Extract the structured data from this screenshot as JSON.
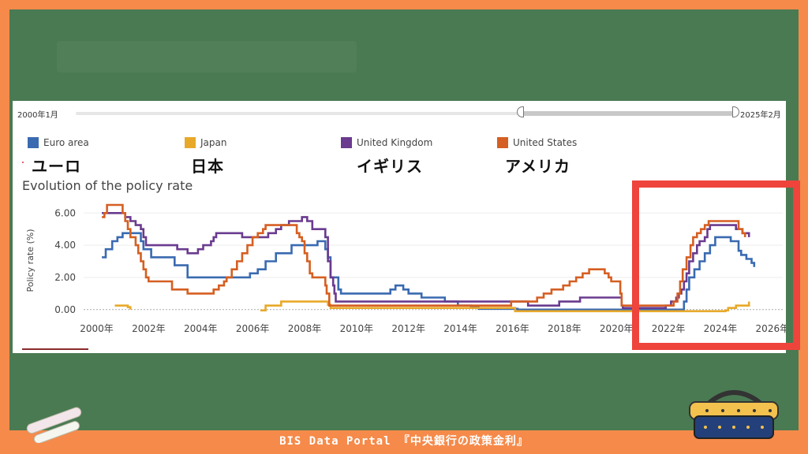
{
  "slider": {
    "start_label": "2000年1月",
    "end_label": "2025年2月"
  },
  "legend": [
    {
      "name": "Euro area",
      "jp": "ユーロ",
      "color": "#3a6ab0"
    },
    {
      "name": "Japan",
      "jp": "日本",
      "color": "#e8a92a"
    },
    {
      "name": "United Kingdom",
      "jp": "イギリス",
      "color": "#6a3b8f"
    },
    {
      "name": "United States",
      "jp": "アメリカ",
      "color": "#d55f22"
    }
  ],
  "footer_text": "BIS  Data Portal 『中央銀行の政策金利』",
  "chart_data": {
    "type": "line",
    "title": "Evolution of the policy rate",
    "xlabel": "",
    "ylabel": "Policy rate (%)",
    "xlim": [
      1999.5,
      2026.4
    ],
    "ylim": [
      -0.5,
      6.6
    ],
    "yticks": [
      "0.00",
      "2.00",
      "4.00",
      "6.00"
    ],
    "ytick_values": [
      0,
      2,
      4,
      6
    ],
    "xticks": [
      "2000年",
      "2002年",
      "2004年",
      "2006年",
      "2008年",
      "2010年",
      "2012年",
      "2014年",
      "2016年",
      "2018年",
      "2020年",
      "2022年",
      "2024年",
      "2026年"
    ],
    "xtick_values": [
      2000,
      2002,
      2004,
      2006,
      2008,
      2010,
      2012,
      2014,
      2016,
      2018,
      2020,
      2022,
      2024,
      2026
    ],
    "step": true,
    "series": [
      {
        "name": "Euro area",
        "color": "#3a6ab0",
        "points": [
          [
            2000.2,
            3.25
          ],
          [
            2000.35,
            3.75
          ],
          [
            2000.6,
            4.25
          ],
          [
            2000.8,
            4.5
          ],
          [
            2001.0,
            4.75
          ],
          [
            2001.7,
            4.25
          ],
          [
            2001.8,
            3.75
          ],
          [
            2002.1,
            3.25
          ],
          [
            2003.0,
            2.75
          ],
          [
            2003.5,
            2.0
          ],
          [
            2005.9,
            2.25
          ],
          [
            2006.2,
            2.5
          ],
          [
            2006.5,
            3.0
          ],
          [
            2006.9,
            3.5
          ],
          [
            2007.5,
            4.0
          ],
          [
            2008.5,
            4.25
          ],
          [
            2008.8,
            3.75
          ],
          [
            2008.9,
            3.25
          ],
          [
            2009.0,
            2.0
          ],
          [
            2009.3,
            1.25
          ],
          [
            2009.4,
            1.0
          ],
          [
            2011.3,
            1.25
          ],
          [
            2011.5,
            1.5
          ],
          [
            2011.8,
            1.25
          ],
          [
            2012.0,
            1.0
          ],
          [
            2012.5,
            0.75
          ],
          [
            2013.4,
            0.5
          ],
          [
            2013.9,
            0.25
          ],
          [
            2014.4,
            0.15
          ],
          [
            2014.7,
            0.05
          ],
          [
            2016.2,
            0.0
          ],
          [
            2022.6,
            0.5
          ],
          [
            2022.7,
            1.25
          ],
          [
            2022.8,
            2.0
          ],
          [
            2023.0,
            2.5
          ],
          [
            2023.2,
            3.0
          ],
          [
            2023.4,
            3.5
          ],
          [
            2023.6,
            4.0
          ],
          [
            2023.8,
            4.5
          ],
          [
            2024.4,
            4.25
          ],
          [
            2024.7,
            3.65
          ],
          [
            2024.8,
            3.4
          ],
          [
            2025.0,
            3.15
          ],
          [
            2025.2,
            2.9
          ],
          [
            2025.3,
            2.65
          ]
        ]
      },
      {
        "name": "Japan",
        "color": "#e8a92a",
        "segments": [
          [
            [
              2000.7,
              0.25
            ],
            [
              2001.2,
              0.15
            ],
            [
              2001.3,
              0.0
            ]
          ],
          [
            [
              2006.3,
              -0.05
            ],
            [
              2006.5,
              0.25
            ],
            [
              2007.1,
              0.5
            ],
            [
              2008.9,
              0.3
            ],
            [
              2009.0,
              0.1
            ],
            [
              2016.1,
              -0.1
            ],
            [
              2024.2,
              -0.05
            ],
            [
              2024.3,
              0.1
            ],
            [
              2024.6,
              0.25
            ],
            [
              2025.1,
              0.5
            ]
          ]
        ]
      },
      {
        "name": "United Kingdom",
        "color": "#6a3b8f",
        "points": [
          [
            2000.2,
            6.0
          ],
          [
            2001.1,
            5.75
          ],
          [
            2001.3,
            5.5
          ],
          [
            2001.5,
            5.25
          ],
          [
            2001.7,
            5.0
          ],
          [
            2001.8,
            4.5
          ],
          [
            2001.9,
            4.0
          ],
          [
            2003.1,
            3.75
          ],
          [
            2003.5,
            3.5
          ],
          [
            2003.9,
            3.75
          ],
          [
            2004.1,
            4.0
          ],
          [
            2004.4,
            4.25
          ],
          [
            2004.5,
            4.5
          ],
          [
            2004.6,
            4.75
          ],
          [
            2005.6,
            4.5
          ],
          [
            2006.6,
            4.75
          ],
          [
            2006.9,
            5.0
          ],
          [
            2007.1,
            5.25
          ],
          [
            2007.4,
            5.5
          ],
          [
            2007.9,
            5.75
          ],
          [
            2008.1,
            5.5
          ],
          [
            2008.3,
            5.0
          ],
          [
            2008.8,
            4.5
          ],
          [
            2008.9,
            3.0
          ],
          [
            2009.0,
            2.0
          ],
          [
            2009.1,
            1.5
          ],
          [
            2009.15,
            1.0
          ],
          [
            2009.2,
            0.5
          ],
          [
            2016.6,
            0.25
          ],
          [
            2017.8,
            0.5
          ],
          [
            2018.6,
            0.75
          ],
          [
            2020.2,
            0.25
          ],
          [
            2020.25,
            0.1
          ],
          [
            2021.9,
            0.25
          ],
          [
            2022.1,
            0.5
          ],
          [
            2022.3,
            0.75
          ],
          [
            2022.4,
            1.0
          ],
          [
            2022.5,
            1.25
          ],
          [
            2022.6,
            1.75
          ],
          [
            2022.7,
            2.25
          ],
          [
            2022.8,
            3.0
          ],
          [
            2022.95,
            3.5
          ],
          [
            2023.1,
            4.0
          ],
          [
            2023.2,
            4.25
          ],
          [
            2023.4,
            4.5
          ],
          [
            2023.5,
            5.0
          ],
          [
            2023.6,
            5.25
          ],
          [
            2024.6,
            5.0
          ],
          [
            2024.85,
            4.75
          ],
          [
            2025.1,
            4.5
          ]
        ]
      },
      {
        "name": "United States",
        "color": "#d55f22",
        "points": [
          [
            2000.2,
            5.75
          ],
          [
            2000.3,
            6.0
          ],
          [
            2000.4,
            6.5
          ],
          [
            2001.0,
            6.0
          ],
          [
            2001.1,
            5.5
          ],
          [
            2001.2,
            5.0
          ],
          [
            2001.3,
            4.5
          ],
          [
            2001.5,
            4.0
          ],
          [
            2001.6,
            3.5
          ],
          [
            2001.7,
            3.0
          ],
          [
            2001.8,
            2.5
          ],
          [
            2001.9,
            2.0
          ],
          [
            2002.0,
            1.75
          ],
          [
            2002.9,
            1.25
          ],
          [
            2003.5,
            1.0
          ],
          [
            2004.5,
            1.25
          ],
          [
            2004.7,
            1.5
          ],
          [
            2004.9,
            1.75
          ],
          [
            2005.0,
            2.0
          ],
          [
            2005.2,
            2.5
          ],
          [
            2005.4,
            3.0
          ],
          [
            2005.6,
            3.5
          ],
          [
            2005.8,
            4.0
          ],
          [
            2006.0,
            4.5
          ],
          [
            2006.2,
            4.75
          ],
          [
            2006.4,
            5.0
          ],
          [
            2006.5,
            5.25
          ],
          [
            2007.7,
            4.75
          ],
          [
            2007.8,
            4.5
          ],
          [
            2007.9,
            4.25
          ],
          [
            2008.0,
            3.5
          ],
          [
            2008.1,
            3.0
          ],
          [
            2008.2,
            2.25
          ],
          [
            2008.3,
            2.0
          ],
          [
            2008.8,
            1.5
          ],
          [
            2008.85,
            1.0
          ],
          [
            2008.95,
            0.25
          ],
          [
            2015.95,
            0.5
          ],
          [
            2016.95,
            0.75
          ],
          [
            2017.2,
            1.0
          ],
          [
            2017.5,
            1.25
          ],
          [
            2017.95,
            1.5
          ],
          [
            2018.2,
            1.75
          ],
          [
            2018.45,
            2.0
          ],
          [
            2018.7,
            2.25
          ],
          [
            2018.95,
            2.5
          ],
          [
            2019.55,
            2.25
          ],
          [
            2019.7,
            2.0
          ],
          [
            2019.8,
            1.75
          ],
          [
            2020.15,
            1.0
          ],
          [
            2020.2,
            0.25
          ],
          [
            2022.2,
            0.5
          ],
          [
            2022.35,
            1.0
          ],
          [
            2022.45,
            1.75
          ],
          [
            2022.55,
            2.5
          ],
          [
            2022.7,
            3.25
          ],
          [
            2022.85,
            4.0
          ],
          [
            2022.95,
            4.5
          ],
          [
            2023.1,
            4.75
          ],
          [
            2023.25,
            5.0
          ],
          [
            2023.4,
            5.25
          ],
          [
            2023.55,
            5.5
          ],
          [
            2024.7,
            5.0
          ],
          [
            2024.85,
            4.75
          ],
          [
            2024.95,
            4.5
          ]
        ]
      }
    ]
  }
}
